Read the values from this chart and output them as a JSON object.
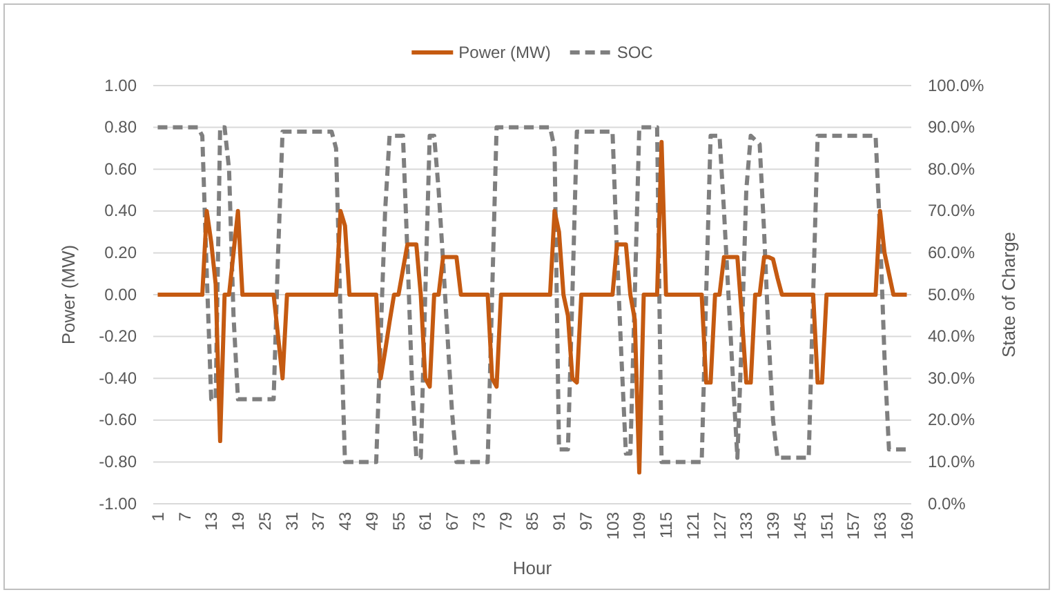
{
  "chart_data": {
    "type": "line",
    "xlabel": "Hour",
    "ylabel": "Power (MW)",
    "y2label": "State of Charge",
    "legend": "top",
    "grid": "y",
    "xlim": [
      0,
      170
    ],
    "xticks": [
      1,
      7,
      13,
      19,
      25,
      31,
      37,
      43,
      49,
      55,
      61,
      67,
      73,
      79,
      85,
      91,
      97,
      103,
      109,
      115,
      121,
      127,
      133,
      139,
      145,
      151,
      157,
      163,
      169
    ],
    "ylim": [
      -1,
      1
    ],
    "yticks": [
      {
        "value": -1,
        "label": "-1.00"
      },
      {
        "value": -0.8,
        "label": "-0.80"
      },
      {
        "value": -0.6,
        "label": "-0.60"
      },
      {
        "value": -0.4,
        "label": "-0.40"
      },
      {
        "value": -0.2,
        "label": "-0.20"
      },
      {
        "value": 0,
        "label": "0.00"
      },
      {
        "value": 0.2,
        "label": "0.20"
      },
      {
        "value": 0.4,
        "label": "0.40"
      },
      {
        "value": 0.6,
        "label": "0.60"
      },
      {
        "value": 0.8,
        "label": "0.80"
      },
      {
        "value": 1,
        "label": "1.00"
      }
    ],
    "y2lim": [
      0,
      100
    ],
    "y2ticks": [
      {
        "value": 0,
        "label": "0.0%"
      },
      {
        "value": 10,
        "label": "10.0%"
      },
      {
        "value": 20,
        "label": "20.0%"
      },
      {
        "value": 30,
        "label": "30.0%"
      },
      {
        "value": 40,
        "label": "40.0%"
      },
      {
        "value": 50,
        "label": "50.0%"
      },
      {
        "value": 60,
        "label": "60.0%"
      },
      {
        "value": 70,
        "label": "70.0%"
      },
      {
        "value": 80,
        "label": "80.0%"
      },
      {
        "value": 90,
        "label": "90.0%"
      },
      {
        "value": 100,
        "label": "100.0%"
      }
    ],
    "series": [
      {
        "name": "Power (MW)",
        "color": "#c55a11",
        "line_style": "solid",
        "x": [
          1,
          11,
          12,
          13,
          14,
          15,
          16,
          17,
          18,
          19,
          20,
          27,
          28,
          29,
          30,
          41,
          42,
          43,
          44,
          50,
          51,
          52,
          53,
          54,
          55,
          56,
          57,
          59,
          60,
          61,
          62,
          63,
          64,
          65,
          68,
          69,
          75,
          76,
          77,
          78,
          89,
          90,
          91,
          92,
          93,
          94,
          95,
          96,
          103,
          104,
          106,
          107,
          108,
          109,
          110,
          113,
          114,
          115,
          123,
          124,
          125,
          126,
          127,
          128,
          131,
          132,
          133,
          134,
          135,
          136,
          137,
          138,
          139,
          140,
          141,
          148,
          149,
          150,
          151,
          162,
          163,
          164,
          165,
          166,
          169
        ],
        "values": [
          0,
          0,
          0.4,
          0.25,
          0.05,
          -0.7,
          0,
          0,
          0.2,
          0.4,
          0,
          0,
          -0.2,
          -0.4,
          0,
          0,
          0.4,
          0.33,
          0,
          0,
          -0.4,
          -0.27,
          -0.13,
          0,
          0,
          0.12,
          0.24,
          0.24,
          0,
          -0.4,
          -0.44,
          0,
          0,
          0.18,
          0.18,
          0,
          0,
          -0.4,
          -0.44,
          0,
          0,
          0.4,
          0.3,
          0,
          -0.1,
          -0.4,
          -0.42,
          0,
          0,
          0.24,
          0.24,
          0,
          -0.12,
          -0.85,
          0,
          0,
          0.73,
          0,
          0,
          -0.42,
          -0.42,
          0,
          0,
          0.18,
          0.18,
          -0.1,
          -0.42,
          -0.42,
          0,
          0,
          0.18,
          0.18,
          0.17,
          0.08,
          0,
          0,
          -0.42,
          -0.42,
          0,
          0,
          0.4,
          0.2,
          0.1,
          0,
          0
        ]
      },
      {
        "name": "SOC",
        "color": "#7f7f7f",
        "axis": "y2",
        "line_style": "dashed",
        "x": [
          1,
          10,
          11,
          12,
          13,
          14,
          15,
          16,
          17,
          18,
          19,
          27,
          28,
          29,
          40,
          41,
          42,
          43,
          50,
          51,
          52,
          53,
          56,
          57,
          58,
          59,
          60,
          61,
          62,
          63,
          64,
          65,
          66,
          67,
          68,
          75,
          76,
          77,
          89,
          90,
          91,
          93,
          94,
          95,
          103,
          104,
          105,
          106,
          107,
          108,
          109,
          113,
          114,
          123,
          124,
          125,
          127,
          128,
          129,
          130,
          131,
          132,
          133,
          134,
          136,
          137,
          138,
          139,
          140,
          147,
          148,
          149,
          162,
          163,
          164,
          165,
          169
        ],
        "values": [
          90,
          90,
          88,
          55,
          25,
          25,
          90,
          90,
          80,
          45,
          25,
          25,
          60,
          89,
          89,
          85,
          45,
          10,
          10,
          40,
          70,
          88,
          88,
          60,
          30,
          11,
          11,
          50,
          88,
          88,
          75,
          58,
          40,
          22,
          10,
          10,
          50,
          90,
          90,
          85,
          13,
          13,
          50,
          89,
          89,
          60,
          35,
          12,
          12,
          50,
          90,
          90,
          10,
          10,
          50,
          88,
          88,
          70,
          50,
          30,
          11,
          40,
          75,
          88,
          86,
          65,
          40,
          20,
          11,
          11,
          50,
          88,
          88,
          65,
          35,
          13,
          13
        ]
      }
    ]
  }
}
